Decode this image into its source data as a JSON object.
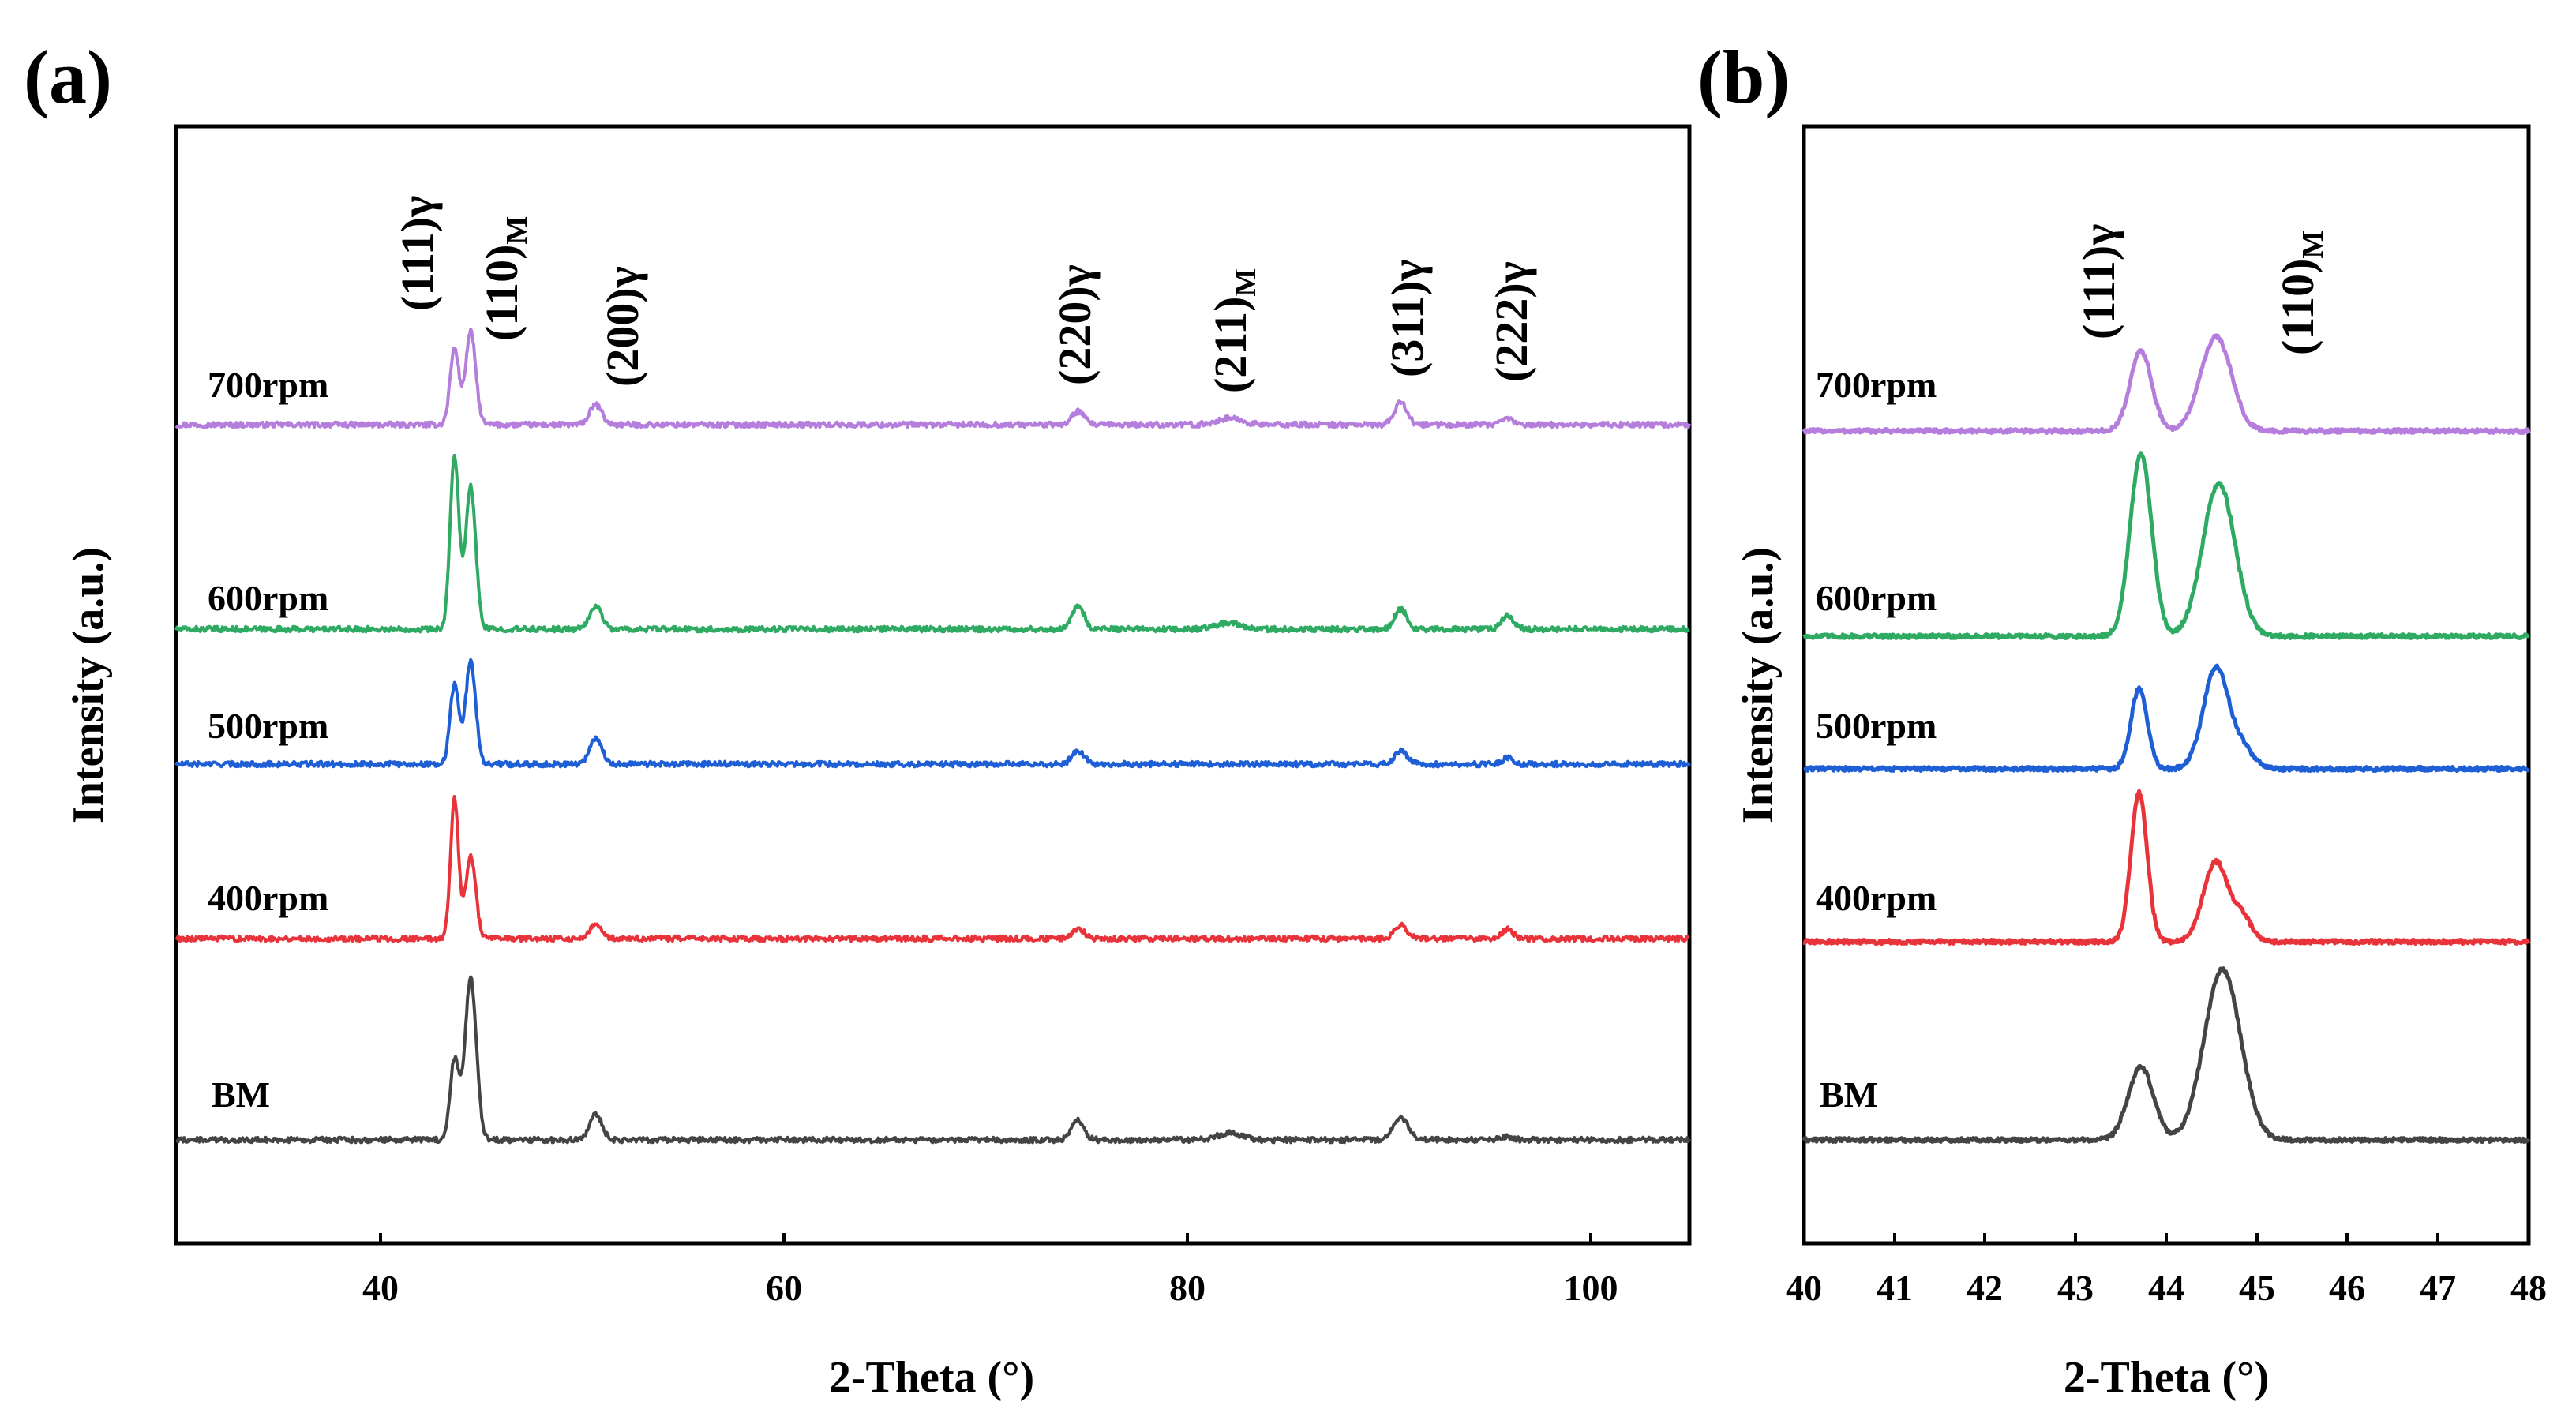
{
  "chart_data": [
    {
      "panel": "(a)",
      "type": "line",
      "xlabel": "2-Theta (°)",
      "ylabel": "Intensity (a.u.)",
      "xlim": [
        30,
        105
      ],
      "xticks": [
        "40",
        "60",
        "80",
        "100"
      ],
      "xtick_values": [
        40,
        60,
        80,
        100
      ],
      "series": [
        {
          "name": "700rpm",
          "color": "#B57EDC",
          "peaks": [
            [
              43.8,
              23,
              0.22
            ],
            [
              44.6,
              28,
              0.25
            ],
            [
              50.8,
              6,
              0.3
            ],
            [
              74.7,
              4,
              0.3
            ],
            [
              82.2,
              2,
              0.6
            ],
            [
              90.7,
              7,
              0.3
            ],
            [
              96.0,
              2,
              0.25
            ]
          ]
        },
        {
          "name": "600rpm",
          "color": "#2EAA62",
          "peaks": [
            [
              43.8,
              52,
              0.22
            ],
            [
              44.6,
              43,
              0.25
            ],
            [
              50.8,
              7,
              0.3
            ],
            [
              74.7,
              7,
              0.3
            ],
            [
              82.2,
              2,
              0.6
            ],
            [
              90.7,
              6,
              0.3
            ],
            [
              96.0,
              4,
              0.3
            ]
          ]
        },
        {
          "name": "500rpm",
          "color": "#1F5FD6",
          "peaks": [
            [
              43.8,
              24,
              0.22
            ],
            [
              44.6,
              31,
              0.25
            ],
            [
              50.8,
              8,
              0.3
            ],
            [
              74.7,
              4,
              0.3
            ],
            [
              90.7,
              4,
              0.3
            ],
            [
              96.0,
              2,
              0.25
            ]
          ]
        },
        {
          "name": "400rpm",
          "color": "#E8333A",
          "peaks": [
            [
              43.8,
              42,
              0.2
            ],
            [
              44.6,
              25,
              0.25
            ],
            [
              50.8,
              4,
              0.3
            ],
            [
              74.7,
              3,
              0.3
            ],
            [
              90.7,
              4,
              0.3
            ],
            [
              96.0,
              3,
              0.25
            ]
          ]
        },
        {
          "name": "BM",
          "color": "#444444",
          "peaks": [
            [
              43.8,
              24,
              0.22
            ],
            [
              44.6,
              49,
              0.28
            ],
            [
              50.8,
              8,
              0.3
            ],
            [
              74.7,
              6,
              0.3
            ],
            [
              82.2,
              2,
              0.6
            ],
            [
              90.7,
              7,
              0.35
            ],
            [
              96.0,
              1,
              0.3
            ]
          ]
        }
      ],
      "annotations": [
        {
          "label": "(111)γ",
          "x": 43.8
        },
        {
          "label": "(110)",
          "sub": "M",
          "x": 44.6
        },
        {
          "label": "(200)γ",
          "x": 50.8
        },
        {
          "label": "(220)γ",
          "x": 74.7
        },
        {
          "label": "(211)",
          "sub": "M",
          "x": 82.2
        },
        {
          "label": "(311)γ",
          "x": 90.7
        },
        {
          "label": "(222)γ",
          "x": 96.0
        }
      ]
    },
    {
      "panel": "(b)",
      "type": "line",
      "xlabel": "2-Theta (°)",
      "ylabel": "Intensity (a.u.)",
      "xlim": [
        40,
        48
      ],
      "xticks": [
        "40",
        "41",
        "42",
        "43",
        "44",
        "45",
        "46",
        "47",
        "48"
      ],
      "xtick_values": [
        40,
        41,
        42,
        43,
        44,
        45,
        46,
        47,
        48
      ],
      "series": [
        {
          "name": "700rpm",
          "color": "#B57EDC",
          "peaks": [
            [
              43.72,
              22,
              0.12
            ],
            [
              44.55,
              26,
              0.17
            ]
          ]
        },
        {
          "name": "600rpm",
          "color": "#2EAA62",
          "peaks": [
            [
              43.72,
              50,
              0.12
            ],
            [
              44.58,
              42,
              0.18
            ]
          ]
        },
        {
          "name": "500rpm",
          "color": "#1F5FD6",
          "peaks": [
            [
              43.7,
              22,
              0.09
            ],
            [
              44.55,
              28,
              0.14
            ],
            [
              44.85,
              5,
              0.12
            ]
          ]
        },
        {
          "name": "400rpm",
          "color": "#E8333A",
          "peaks": [
            [
              43.7,
              41,
              0.09
            ],
            [
              44.55,
              22,
              0.14
            ],
            [
              44.85,
              6,
              0.1
            ]
          ]
        },
        {
          "name": "BM",
          "color": "#444444",
          "peaks": [
            [
              43.72,
              20,
              0.14
            ],
            [
              44.62,
              47,
              0.2
            ]
          ]
        }
      ],
      "annotations": [
        {
          "label": "(111)γ",
          "x": 43.72
        },
        {
          "label": "(110)",
          "sub": "M",
          "x": 44.6
        }
      ]
    }
  ]
}
